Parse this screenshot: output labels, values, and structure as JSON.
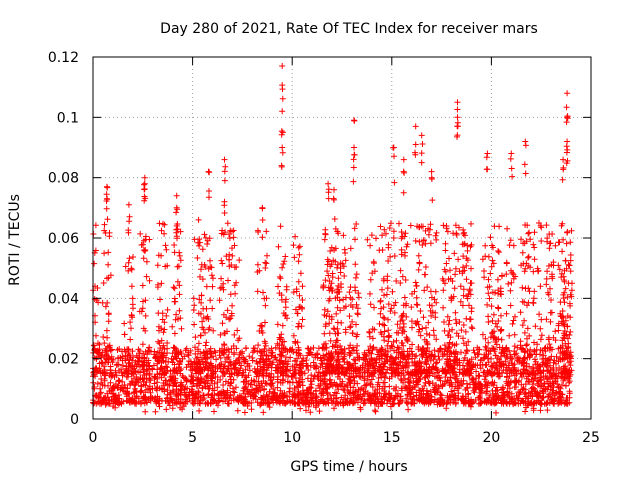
{
  "chart_data": {
    "type": "scatter",
    "title": "Day 280 of 2021, Rate Of TEC Index for receiver mars",
    "xlabel": "GPS time / hours",
    "ylabel": "ROTI / TECUs",
    "xlim": [
      0,
      25
    ],
    "ylim": [
      0,
      0.12
    ],
    "x_ticks": [
      0,
      5,
      10,
      15,
      20,
      25
    ],
    "y_ticks": [
      0,
      0.02,
      0.04,
      0.06,
      0.08,
      0.1,
      0.12
    ],
    "x_tick_labels": [
      "0",
      "5",
      "10",
      "15",
      "20",
      "25"
    ],
    "y_tick_labels": [
      "0",
      "0.02",
      "0.04",
      "0.06",
      "0.08",
      "0.1",
      "0.12"
    ],
    "grid": true,
    "marker": "+",
    "color": "#ff0000",
    "x_range_of_data": [
      0,
      24
    ],
    "baseline_band": [
      0.005,
      0.02
    ],
    "series": [
      {
        "name": "ROTI",
        "notable_points": [
          {
            "x": 0.1,
            "y": 0.044
          },
          {
            "x": 0.7,
            "y": 0.077
          },
          {
            "x": 0.7,
            "y": 0.073
          },
          {
            "x": 1.8,
            "y": 0.071
          },
          {
            "x": 2.6,
            "y": 0.08
          },
          {
            "x": 2.6,
            "y": 0.078
          },
          {
            "x": 4.2,
            "y": 0.074
          },
          {
            "x": 4.2,
            "y": 0.07
          },
          {
            "x": 5.3,
            "y": 0.066
          },
          {
            "x": 5.8,
            "y": 0.082
          },
          {
            "x": 6.6,
            "y": 0.086
          },
          {
            "x": 6.6,
            "y": 0.072
          },
          {
            "x": 8.5,
            "y": 0.07
          },
          {
            "x": 9.5,
            "y": 0.117
          },
          {
            "x": 9.5,
            "y": 0.102
          },
          {
            "x": 9.5,
            "y": 0.09
          },
          {
            "x": 11.8,
            "y": 0.078
          },
          {
            "x": 12.1,
            "y": 0.076
          },
          {
            "x": 13.1,
            "y": 0.099
          },
          {
            "x": 13.1,
            "y": 0.09
          },
          {
            "x": 15.1,
            "y": 0.09
          },
          {
            "x": 15.6,
            "y": 0.086
          },
          {
            "x": 16.2,
            "y": 0.097
          },
          {
            "x": 16.5,
            "y": 0.094
          },
          {
            "x": 17.0,
            "y": 0.082
          },
          {
            "x": 18.3,
            "y": 0.105
          },
          {
            "x": 18.3,
            "y": 0.1
          },
          {
            "x": 19.8,
            "y": 0.088
          },
          {
            "x": 21.0,
            "y": 0.088
          },
          {
            "x": 21.7,
            "y": 0.092
          },
          {
            "x": 23.8,
            "y": 0.108
          },
          {
            "x": 23.8,
            "y": 0.1
          },
          {
            "x": 23.8,
            "y": 0.092
          },
          {
            "x": 23.6,
            "y": 0.086
          }
        ],
        "burst_centers_hours": [
          0.1,
          0.7,
          1.8,
          2.6,
          3.5,
          4.2,
          5.3,
          5.8,
          6.6,
          7.1,
          8.5,
          9.5,
          10.3,
          11.8,
          12.1,
          12.5,
          13.1,
          14.0,
          14.6,
          15.1,
          15.6,
          16.2,
          16.5,
          17.0,
          17.8,
          18.3,
          18.8,
          19.8,
          20.3,
          21.0,
          21.7,
          22.3,
          23.0,
          23.6,
          23.8
        ]
      }
    ]
  }
}
